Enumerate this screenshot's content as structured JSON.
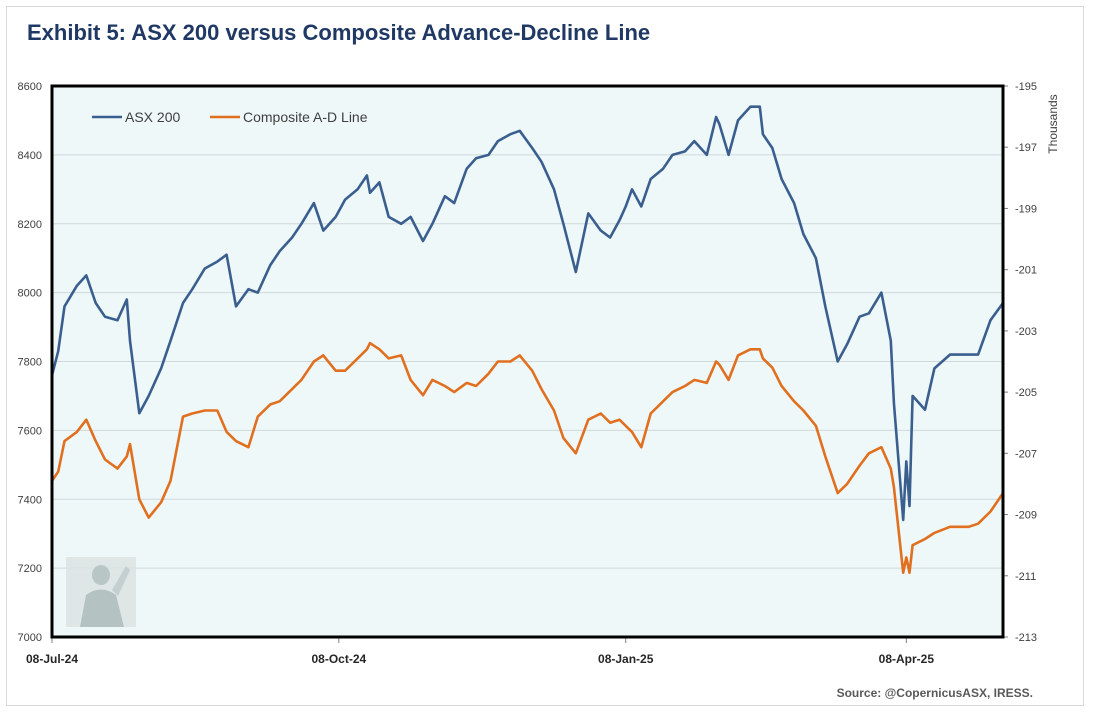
{
  "title": "Exhibit 5: ASX 200 versus Composite Advance-Decline Line",
  "source": "Source: @CopernicusASX, IRESS.",
  "chart_data": {
    "type": "line",
    "title": "Exhibit 5: ASX 200 versus Composite Advance-Decline Line",
    "x_range": [
      "2024-07-08",
      "2025-05-09"
    ],
    "x_ticks": [
      {
        "date": "2024-07-08",
        "label": "08-Jul-24"
      },
      {
        "date": "2024-10-08",
        "label": "08-Oct-24"
      },
      {
        "date": "2025-01-08",
        "label": "08-Jan-25"
      },
      {
        "date": "2025-04-08",
        "label": "08-Apr-25"
      }
    ],
    "y_left": {
      "min": 7000,
      "max": 8600,
      "ticks": [
        "7000",
        "7200",
        "7400",
        "7600",
        "7800",
        "8000",
        "8200",
        "8400",
        "8600"
      ]
    },
    "y_right": {
      "label": "Thousands",
      "min": -213,
      "max": -195,
      "ticks": [
        "-195",
        "-197",
        "-199",
        "-201",
        "-203",
        "-205",
        "-207",
        "-209",
        "-211",
        "-213"
      ]
    },
    "grid": true,
    "legend_position": "top-left",
    "series": [
      {
        "name": "ASX 200",
        "color": "#3a5f8f",
        "axis": "left",
        "points": [
          [
            "2024-07-08",
            7760
          ],
          [
            "2024-07-10",
            7830
          ],
          [
            "2024-07-12",
            7960
          ],
          [
            "2024-07-16",
            8020
          ],
          [
            "2024-07-19",
            8050
          ],
          [
            "2024-07-22",
            7970
          ],
          [
            "2024-07-25",
            7930
          ],
          [
            "2024-07-29",
            7920
          ],
          [
            "2024-08-01",
            7980
          ],
          [
            "2024-08-02",
            7860
          ],
          [
            "2024-08-05",
            7650
          ],
          [
            "2024-08-08",
            7700
          ],
          [
            "2024-08-12",
            7780
          ],
          [
            "2024-08-15",
            7860
          ],
          [
            "2024-08-19",
            7970
          ],
          [
            "2024-08-22",
            8010
          ],
          [
            "2024-08-26",
            8070
          ],
          [
            "2024-08-30",
            8090
          ],
          [
            "2024-09-02",
            8110
          ],
          [
            "2024-09-05",
            7960
          ],
          [
            "2024-09-09",
            8010
          ],
          [
            "2024-09-12",
            8000
          ],
          [
            "2024-09-16",
            8080
          ],
          [
            "2024-09-19",
            8120
          ],
          [
            "2024-09-23",
            8160
          ],
          [
            "2024-09-26",
            8200
          ],
          [
            "2024-09-30",
            8260
          ],
          [
            "2024-10-03",
            8180
          ],
          [
            "2024-10-07",
            8220
          ],
          [
            "2024-10-10",
            8270
          ],
          [
            "2024-10-14",
            8300
          ],
          [
            "2024-10-17",
            8340
          ],
          [
            "2024-10-18",
            8290
          ],
          [
            "2024-10-21",
            8320
          ],
          [
            "2024-10-24",
            8220
          ],
          [
            "2024-10-28",
            8200
          ],
          [
            "2024-10-31",
            8220
          ],
          [
            "2024-11-04",
            8150
          ],
          [
            "2024-11-07",
            8200
          ],
          [
            "2024-11-11",
            8280
          ],
          [
            "2024-11-14",
            8260
          ],
          [
            "2024-11-18",
            8360
          ],
          [
            "2024-11-21",
            8390
          ],
          [
            "2024-11-25",
            8400
          ],
          [
            "2024-11-28",
            8440
          ],
          [
            "2024-12-02",
            8460
          ],
          [
            "2024-12-05",
            8470
          ],
          [
            "2024-12-09",
            8420
          ],
          [
            "2024-12-12",
            8380
          ],
          [
            "2024-12-16",
            8300
          ],
          [
            "2024-12-19",
            8200
          ],
          [
            "2024-12-23",
            8060
          ],
          [
            "2024-12-27",
            8230
          ],
          [
            "2024-12-31",
            8180
          ],
          [
            "2025-01-03",
            8160
          ],
          [
            "2025-01-06",
            8210
          ],
          [
            "2025-01-08",
            8250
          ],
          [
            "2025-01-10",
            8300
          ],
          [
            "2025-01-13",
            8250
          ],
          [
            "2025-01-16",
            8330
          ],
          [
            "2025-01-20",
            8360
          ],
          [
            "2025-01-23",
            8400
          ],
          [
            "2025-01-27",
            8410
          ],
          [
            "2025-01-30",
            8440
          ],
          [
            "2025-02-03",
            8400
          ],
          [
            "2025-02-06",
            8510
          ],
          [
            "2025-02-07",
            8490
          ],
          [
            "2025-02-10",
            8400
          ],
          [
            "2025-02-13",
            8500
          ],
          [
            "2025-02-17",
            8540
          ],
          [
            "2025-02-20",
            8540
          ],
          [
            "2025-02-21",
            8460
          ],
          [
            "2025-02-24",
            8420
          ],
          [
            "2025-02-27",
            8330
          ],
          [
            "2025-03-03",
            8260
          ],
          [
            "2025-03-06",
            8170
          ],
          [
            "2025-03-10",
            8100
          ],
          [
            "2025-03-13",
            7960
          ],
          [
            "2025-03-17",
            7800
          ],
          [
            "2025-03-20",
            7850
          ],
          [
            "2025-03-24",
            7930
          ],
          [
            "2025-03-27",
            7940
          ],
          [
            "2025-03-31",
            8000
          ],
          [
            "2025-04-03",
            7860
          ],
          [
            "2025-04-04",
            7680
          ],
          [
            "2025-04-07",
            7340
          ],
          [
            "2025-04-08",
            7510
          ],
          [
            "2025-04-09",
            7380
          ],
          [
            "2025-04-10",
            7700
          ],
          [
            "2025-04-14",
            7660
          ],
          [
            "2025-04-17",
            7780
          ],
          [
            "2025-04-22",
            7820
          ],
          [
            "2025-04-28",
            7820
          ],
          [
            "2025-05-01",
            7820
          ],
          [
            "2025-05-05",
            7920
          ],
          [
            "2025-05-09",
            7970
          ]
        ]
      },
      {
        "name": "Composite A-D Line",
        "color": "#e07020",
        "axis": "right",
        "points": [
          [
            "2024-07-08",
            -207.9
          ],
          [
            "2024-07-10",
            -207.6
          ],
          [
            "2024-07-12",
            -206.6
          ],
          [
            "2024-07-16",
            -206.3
          ],
          [
            "2024-07-19",
            -205.9
          ],
          [
            "2024-07-22",
            -206.6
          ],
          [
            "2024-07-25",
            -207.2
          ],
          [
            "2024-07-29",
            -207.5
          ],
          [
            "2024-08-01",
            -207.1
          ],
          [
            "2024-08-02",
            -206.7
          ],
          [
            "2024-08-05",
            -208.5
          ],
          [
            "2024-08-08",
            -209.1
          ],
          [
            "2024-08-12",
            -208.6
          ],
          [
            "2024-08-15",
            -207.9
          ],
          [
            "2024-08-19",
            -205.8
          ],
          [
            "2024-08-22",
            -205.7
          ],
          [
            "2024-08-26",
            -205.6
          ],
          [
            "2024-08-30",
            -205.6
          ],
          [
            "2024-09-02",
            -206.3
          ],
          [
            "2024-09-05",
            -206.6
          ],
          [
            "2024-09-09",
            -206.8
          ],
          [
            "2024-09-12",
            -205.8
          ],
          [
            "2024-09-16",
            -205.4
          ],
          [
            "2024-09-19",
            -205.3
          ],
          [
            "2024-09-23",
            -204.9
          ],
          [
            "2024-09-26",
            -204.6
          ],
          [
            "2024-09-30",
            -204.0
          ],
          [
            "2024-10-03",
            -203.8
          ],
          [
            "2024-10-07",
            -204.3
          ],
          [
            "2024-10-10",
            -204.3
          ],
          [
            "2024-10-14",
            -203.9
          ],
          [
            "2024-10-17",
            -203.6
          ],
          [
            "2024-10-18",
            -203.4
          ],
          [
            "2024-10-21",
            -203.6
          ],
          [
            "2024-10-24",
            -203.9
          ],
          [
            "2024-10-28",
            -203.8
          ],
          [
            "2024-10-31",
            -204.6
          ],
          [
            "2024-11-04",
            -205.1
          ],
          [
            "2024-11-07",
            -204.6
          ],
          [
            "2024-11-11",
            -204.8
          ],
          [
            "2024-11-14",
            -205.0
          ],
          [
            "2024-11-18",
            -204.7
          ],
          [
            "2024-11-21",
            -204.8
          ],
          [
            "2024-11-25",
            -204.4
          ],
          [
            "2024-11-28",
            -204.0
          ],
          [
            "2024-12-02",
            -204.0
          ],
          [
            "2024-12-05",
            -203.8
          ],
          [
            "2024-12-09",
            -204.3
          ],
          [
            "2024-12-12",
            -204.9
          ],
          [
            "2024-12-16",
            -205.6
          ],
          [
            "2024-12-19",
            -206.5
          ],
          [
            "2024-12-23",
            -207.0
          ],
          [
            "2024-12-27",
            -205.9
          ],
          [
            "2024-12-31",
            -205.7
          ],
          [
            "2025-01-03",
            -206.0
          ],
          [
            "2025-01-06",
            -205.9
          ],
          [
            "2025-01-08",
            -206.1
          ],
          [
            "2025-01-10",
            -206.3
          ],
          [
            "2025-01-13",
            -206.8
          ],
          [
            "2025-01-16",
            -205.7
          ],
          [
            "2025-01-20",
            -205.3
          ],
          [
            "2025-01-23",
            -205.0
          ],
          [
            "2025-01-27",
            -204.8
          ],
          [
            "2025-01-30",
            -204.6
          ],
          [
            "2025-02-03",
            -204.7
          ],
          [
            "2025-02-06",
            -204.0
          ],
          [
            "2025-02-07",
            -204.1
          ],
          [
            "2025-02-10",
            -204.6
          ],
          [
            "2025-02-13",
            -203.8
          ],
          [
            "2025-02-17",
            -203.6
          ],
          [
            "2025-02-20",
            -203.6
          ],
          [
            "2025-02-21",
            -203.9
          ],
          [
            "2025-02-24",
            -204.2
          ],
          [
            "2025-02-27",
            -204.8
          ],
          [
            "2025-03-03",
            -205.3
          ],
          [
            "2025-03-06",
            -205.6
          ],
          [
            "2025-03-10",
            -206.1
          ],
          [
            "2025-03-13",
            -207.1
          ],
          [
            "2025-03-17",
            -208.3
          ],
          [
            "2025-03-20",
            -208.0
          ],
          [
            "2025-03-24",
            -207.4
          ],
          [
            "2025-03-27",
            -207.0
          ],
          [
            "2025-03-31",
            -206.8
          ],
          [
            "2025-04-03",
            -207.5
          ],
          [
            "2025-04-04",
            -208.1
          ],
          [
            "2025-04-07",
            -210.9
          ],
          [
            "2025-04-08",
            -210.4
          ],
          [
            "2025-04-09",
            -210.9
          ],
          [
            "2025-04-10",
            -210.0
          ],
          [
            "2025-04-14",
            -209.8
          ],
          [
            "2025-04-17",
            -209.6
          ],
          [
            "2025-04-22",
            -209.4
          ],
          [
            "2025-04-28",
            -209.4
          ],
          [
            "2025-05-01",
            -209.3
          ],
          [
            "2025-05-05",
            -208.9
          ],
          [
            "2025-05-09",
            -208.3
          ]
        ]
      }
    ]
  }
}
